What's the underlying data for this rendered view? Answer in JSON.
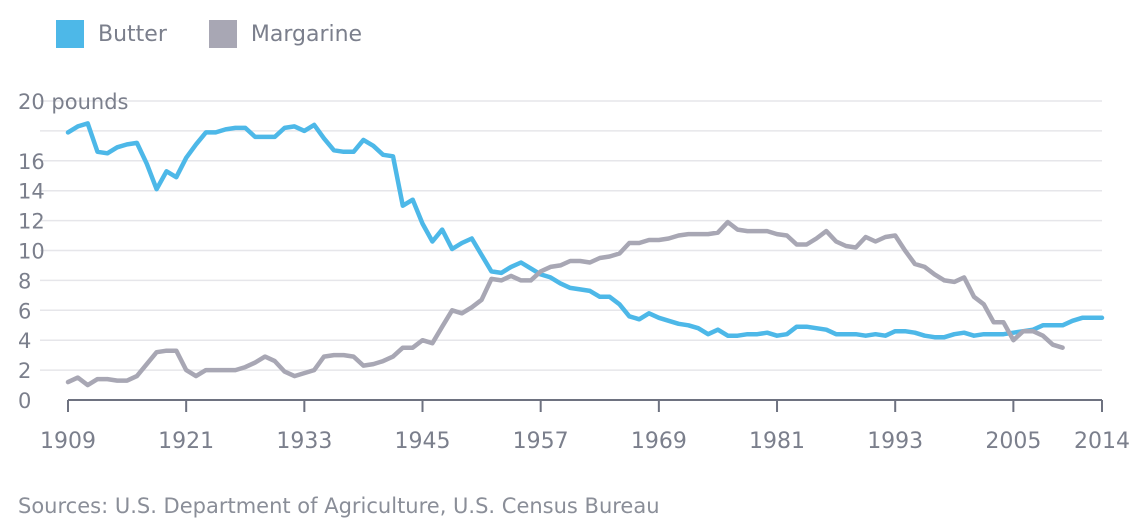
{
  "colors": {
    "butter": "#4db8e8",
    "margarine": "#a8a7b4",
    "grid": "#e6e6ea",
    "axis": "#6e7280"
  },
  "legend": [
    {
      "label": "Butter",
      "color": "#4db8e8"
    },
    {
      "label": "Margarine",
      "color": "#a8a7b4"
    }
  ],
  "source": "Sources: U.S. Department of Agriculture, U.S. Census Bureau",
  "chart_data": {
    "type": "line",
    "ylabel": "pounds",
    "ylim": [
      0,
      20
    ],
    "xlim": [
      1909,
      2014
    ],
    "yticks": [
      {
        "v": 0,
        "label": "0"
      },
      {
        "v": 2,
        "label": "2"
      },
      {
        "v": 4,
        "label": "4"
      },
      {
        "v": 6,
        "label": "6"
      },
      {
        "v": 8,
        "label": "8"
      },
      {
        "v": 10,
        "label": "10"
      },
      {
        "v": 12,
        "label": "12"
      },
      {
        "v": 14,
        "label": "14"
      },
      {
        "v": 16,
        "label": "16"
      },
      {
        "v": 20,
        "label": "20 pounds"
      }
    ],
    "gridlines": [
      0,
      2,
      4,
      6,
      8,
      10,
      12,
      14,
      16,
      18,
      20
    ],
    "xticks": [
      1909,
      1921,
      1933,
      1945,
      1957,
      1969,
      1981,
      1993,
      2005,
      2014
    ],
    "grid": true,
    "legend_position": "top-left",
    "series": [
      {
        "name": "Butter",
        "color": "#4db8e8",
        "points": [
          [
            1909,
            17.9
          ],
          [
            1910,
            18.3
          ],
          [
            1911,
            18.5
          ],
          [
            1912,
            16.6
          ],
          [
            1913,
            16.5
          ],
          [
            1914,
            16.9
          ],
          [
            1915,
            17.1
          ],
          [
            1916,
            17.2
          ],
          [
            1917,
            15.8
          ],
          [
            1918,
            14.1
          ],
          [
            1919,
            15.3
          ],
          [
            1920,
            14.9
          ],
          [
            1921,
            16.2
          ],
          [
            1922,
            17.1
          ],
          [
            1923,
            17.9
          ],
          [
            1924,
            17.9
          ],
          [
            1925,
            18.1
          ],
          [
            1926,
            18.2
          ],
          [
            1927,
            18.2
          ],
          [
            1928,
            17.6
          ],
          [
            1929,
            17.6
          ],
          [
            1930,
            17.6
          ],
          [
            1931,
            18.2
          ],
          [
            1932,
            18.3
          ],
          [
            1933,
            18.0
          ],
          [
            1934,
            18.4
          ],
          [
            1935,
            17.5
          ],
          [
            1936,
            16.7
          ],
          [
            1937,
            16.6
          ],
          [
            1938,
            16.6
          ],
          [
            1939,
            17.4
          ],
          [
            1940,
            17.0
          ],
          [
            1941,
            16.4
          ],
          [
            1942,
            16.3
          ],
          [
            1943,
            13.0
          ],
          [
            1944,
            13.4
          ],
          [
            1945,
            11.8
          ],
          [
            1946,
            10.6
          ],
          [
            1947,
            11.4
          ],
          [
            1948,
            10.1
          ],
          [
            1949,
            10.5
          ],
          [
            1950,
            10.8
          ],
          [
            1951,
            9.7
          ],
          [
            1952,
            8.6
          ],
          [
            1953,
            8.5
          ],
          [
            1954,
            8.9
          ],
          [
            1955,
            9.2
          ],
          [
            1956,
            8.8
          ],
          [
            1957,
            8.4
          ],
          [
            1958,
            8.2
          ],
          [
            1959,
            7.8
          ],
          [
            1960,
            7.5
          ],
          [
            1961,
            7.4
          ],
          [
            1962,
            7.3
          ],
          [
            1963,
            6.9
          ],
          [
            1964,
            6.9
          ],
          [
            1965,
            6.4
          ],
          [
            1966,
            5.6
          ],
          [
            1967,
            5.4
          ],
          [
            1968,
            5.8
          ],
          [
            1969,
            5.5
          ],
          [
            1970,
            5.3
          ],
          [
            1971,
            5.1
          ],
          [
            1972,
            5.0
          ],
          [
            1973,
            4.8
          ],
          [
            1974,
            4.4
          ],
          [
            1975,
            4.7
          ],
          [
            1976,
            4.3
          ],
          [
            1977,
            4.3
          ],
          [
            1978,
            4.4
          ],
          [
            1979,
            4.4
          ],
          [
            1980,
            4.5
          ],
          [
            1981,
            4.3
          ],
          [
            1982,
            4.4
          ],
          [
            1983,
            4.9
          ],
          [
            1984,
            4.9
          ],
          [
            1985,
            4.8
          ],
          [
            1986,
            4.7
          ],
          [
            1987,
            4.4
          ],
          [
            1988,
            4.4
          ],
          [
            1989,
            4.4
          ],
          [
            1990,
            4.3
          ],
          [
            1991,
            4.4
          ],
          [
            1992,
            4.3
          ],
          [
            1993,
            4.6
          ],
          [
            1994,
            4.6
          ],
          [
            1995,
            4.5
          ],
          [
            1996,
            4.3
          ],
          [
            1997,
            4.2
          ],
          [
            1998,
            4.2
          ],
          [
            1999,
            4.4
          ],
          [
            2000,
            4.5
          ],
          [
            2001,
            4.3
          ],
          [
            2002,
            4.4
          ],
          [
            2003,
            4.4
          ],
          [
            2004,
            4.4
          ],
          [
            2005,
            4.5
          ],
          [
            2006,
            4.6
          ],
          [
            2007,
            4.7
          ],
          [
            2008,
            5.0
          ],
          [
            2009,
            5.0
          ],
          [
            2010,
            5.0
          ],
          [
            2011,
            5.3
          ],
          [
            2012,
            5.5
          ],
          [
            2013,
            5.5
          ],
          [
            2014,
            5.5
          ]
        ]
      },
      {
        "name": "Margarine",
        "color": "#a8a7b4",
        "points": [
          [
            1909,
            1.2
          ],
          [
            1910,
            1.5
          ],
          [
            1911,
            1.0
          ],
          [
            1912,
            1.4
          ],
          [
            1913,
            1.4
          ],
          [
            1914,
            1.3
          ],
          [
            1915,
            1.3
          ],
          [
            1916,
            1.6
          ],
          [
            1917,
            2.4
          ],
          [
            1918,
            3.2
          ],
          [
            1919,
            3.3
          ],
          [
            1920,
            3.3
          ],
          [
            1921,
            2.0
          ],
          [
            1922,
            1.6
          ],
          [
            1923,
            2.0
          ],
          [
            1924,
            2.0
          ],
          [
            1925,
            2.0
          ],
          [
            1926,
            2.0
          ],
          [
            1927,
            2.2
          ],
          [
            1928,
            2.5
          ],
          [
            1929,
            2.9
          ],
          [
            1930,
            2.6
          ],
          [
            1931,
            1.9
          ],
          [
            1932,
            1.6
          ],
          [
            1933,
            1.8
          ],
          [
            1934,
            2.0
          ],
          [
            1935,
            2.9
          ],
          [
            1936,
            3.0
          ],
          [
            1937,
            3.0
          ],
          [
            1938,
            2.9
          ],
          [
            1939,
            2.3
          ],
          [
            1940,
            2.4
          ],
          [
            1941,
            2.6
          ],
          [
            1942,
            2.9
          ],
          [
            1943,
            3.5
          ],
          [
            1944,
            3.5
          ],
          [
            1945,
            4.0
          ],
          [
            1946,
            3.8
          ],
          [
            1947,
            4.9
          ],
          [
            1948,
            6.0
          ],
          [
            1949,
            5.8
          ],
          [
            1950,
            6.2
          ],
          [
            1951,
            6.7
          ],
          [
            1952,
            8.1
          ],
          [
            1953,
            8.0
          ],
          [
            1954,
            8.3
          ],
          [
            1955,
            8.0
          ],
          [
            1956,
            8.0
          ],
          [
            1957,
            8.6
          ],
          [
            1958,
            8.9
          ],
          [
            1959,
            9.0
          ],
          [
            1960,
            9.3
          ],
          [
            1961,
            9.3
          ],
          [
            1962,
            9.2
          ],
          [
            1963,
            9.5
          ],
          [
            1964,
            9.6
          ],
          [
            1965,
            9.8
          ],
          [
            1966,
            10.5
          ],
          [
            1967,
            10.5
          ],
          [
            1968,
            10.7
          ],
          [
            1969,
            10.7
          ],
          [
            1970,
            10.8
          ],
          [
            1971,
            11.0
          ],
          [
            1972,
            11.1
          ],
          [
            1973,
            11.1
          ],
          [
            1974,
            11.1
          ],
          [
            1975,
            11.2
          ],
          [
            1976,
            11.9
          ],
          [
            1977,
            11.4
          ],
          [
            1978,
            11.3
          ],
          [
            1979,
            11.3
          ],
          [
            1980,
            11.3
          ],
          [
            1981,
            11.1
          ],
          [
            1982,
            11.0
          ],
          [
            1983,
            10.4
          ],
          [
            1984,
            10.4
          ],
          [
            1985,
            10.8
          ],
          [
            1986,
            11.3
          ],
          [
            1987,
            10.6
          ],
          [
            1988,
            10.3
          ],
          [
            1989,
            10.2
          ],
          [
            1990,
            10.9
          ],
          [
            1991,
            10.6
          ],
          [
            1992,
            10.9
          ],
          [
            1993,
            11.0
          ],
          [
            1994,
            10.0
          ],
          [
            1995,
            9.1
          ],
          [
            1996,
            8.9
          ],
          [
            1997,
            8.4
          ],
          [
            1998,
            8.0
          ],
          [
            1999,
            7.9
          ],
          [
            2000,
            8.2
          ],
          [
            2001,
            6.9
          ],
          [
            2002,
            6.4
          ],
          [
            2003,
            5.2
          ],
          [
            2004,
            5.2
          ],
          [
            2005,
            4.0
          ],
          [
            2006,
            4.6
          ],
          [
            2007,
            4.6
          ],
          [
            2008,
            4.3
          ],
          [
            2009,
            3.7
          ],
          [
            2010,
            3.5
          ]
        ]
      }
    ]
  }
}
